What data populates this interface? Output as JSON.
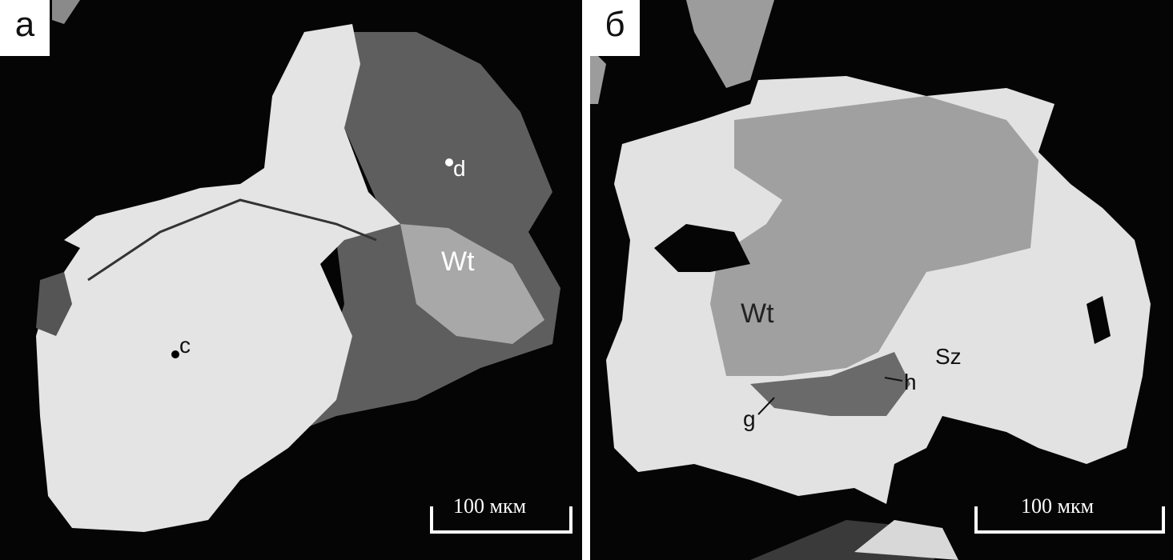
{
  "panels": [
    {
      "label": "а",
      "annotations": {
        "d": "d",
        "c": "c",
        "wt": "Wt"
      },
      "scale_bar": "100 мкм"
    },
    {
      "label": "б",
      "annotations": {
        "wt": "Wt",
        "sz": "Sz",
        "h": "h",
        "g": "g"
      },
      "scale_bar": "100 мкм"
    }
  ],
  "colors": {
    "background": "#050505",
    "bright_phase": "#e6e6e6",
    "gray_phase": "#9a9a9a",
    "dark_phase": "#5a5a5a"
  }
}
